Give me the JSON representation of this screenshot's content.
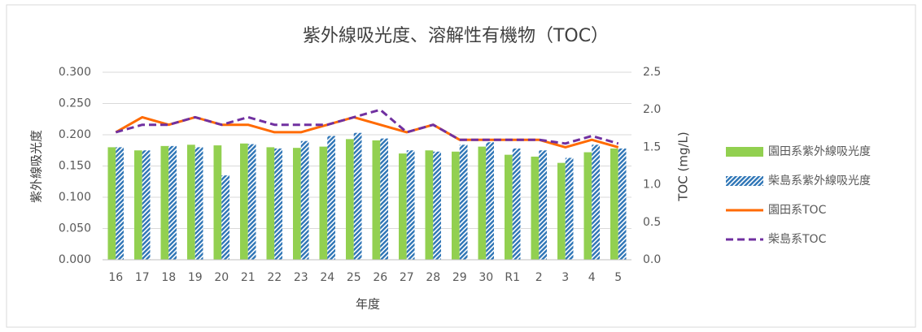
{
  "chart_data": {
    "type": "bar-line",
    "title": "紫外線吸光度、溶解性有機物（TOC）",
    "x_label": "年度",
    "y_label": "紫外線吸光度",
    "y2_label": "TOC (mg/L)",
    "categories": [
      "16",
      "17",
      "18",
      "19",
      "20",
      "21",
      "22",
      "23",
      "24",
      "25",
      "26",
      "27",
      "28",
      "29",
      "30",
      "R1",
      "2",
      "3",
      "4",
      "5"
    ],
    "ylim": [
      0,
      0.3
    ],
    "yticks": [
      {
        "value": 0,
        "label": "0.000"
      },
      {
        "value": 0.05,
        "label": "0.050"
      },
      {
        "value": 0.1,
        "label": "0.100"
      },
      {
        "value": 0.15,
        "label": "0.150"
      },
      {
        "value": 0.2,
        "label": "0.200"
      },
      {
        "value": 0.25,
        "label": "0.250"
      },
      {
        "value": 0.3,
        "label": "0.300"
      }
    ],
    "y2lim": [
      0,
      2.5
    ],
    "y2ticks": [
      {
        "value": 0,
        "label": "0.0"
      },
      0.5,
      {
        "value": 1,
        "label": "1.0"
      },
      1.5,
      {
        "value": 2,
        "label": "2.0"
      },
      2.5
    ],
    "grid": true,
    "legend": "right",
    "series": [
      {
        "name": "園田系紫外線吸光度",
        "kind": "bar",
        "hatch": false,
        "color": "#92d050",
        "values": [
          0.18,
          0.175,
          0.182,
          0.184,
          0.183,
          0.186,
          0.18,
          0.179,
          0.181,
          0.193,
          0.191,
          0.17,
          0.175,
          0.173,
          0.181,
          0.168,
          0.165,
          0.155,
          0.172,
          0.178
        ]
      },
      {
        "name": "柴島系紫外線吸光度",
        "kind": "bar",
        "hatch": true,
        "color": "#2e75b6",
        "values": [
          0.18,
          0.175,
          0.182,
          0.18,
          0.135,
          0.185,
          0.178,
          0.19,
          0.198,
          0.203,
          0.194,
          0.175,
          0.173,
          0.184,
          0.188,
          0.178,
          0.175,
          0.163,
          0.184,
          0.178
        ]
      },
      {
        "name": "園田系TOC",
        "kind": "line",
        "dashed": false,
        "axis": "y2",
        "color": "#ff6a00",
        "values": [
          1.7,
          1.9,
          1.8,
          1.9,
          1.8,
          1.8,
          1.7,
          1.7,
          1.8,
          1.9,
          1.8,
          1.7,
          1.8,
          1.6,
          1.6,
          1.6,
          1.6,
          1.5,
          1.6,
          1.5
        ]
      },
      {
        "name": "柴島系TOC",
        "kind": "line",
        "dashed": true,
        "axis": "y2",
        "color": "#7030a0",
        "values": [
          1.7,
          1.8,
          1.8,
          1.9,
          1.8,
          1.9,
          1.8,
          1.8,
          1.8,
          1.9,
          2.0,
          1.7,
          1.8,
          1.6,
          1.6,
          1.6,
          1.6,
          1.55,
          1.65,
          1.55
        ]
      }
    ]
  }
}
